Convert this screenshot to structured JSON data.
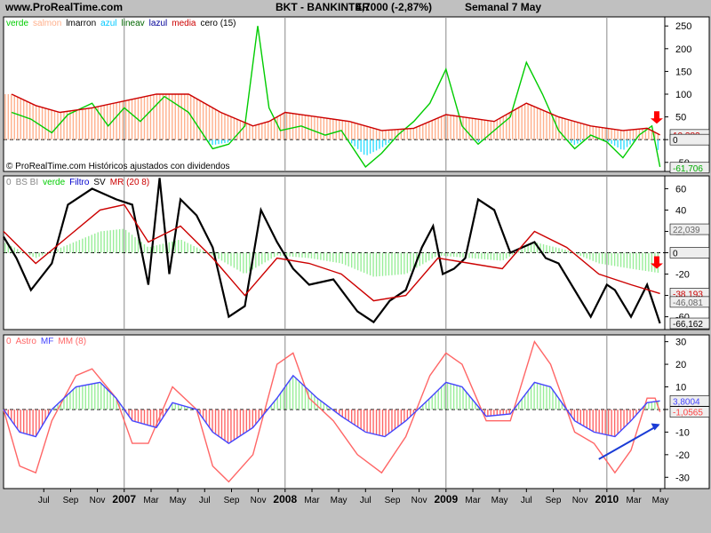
{
  "header": {
    "site": "www.ProRealTime.com",
    "symbol": "BKT - BANKINTER",
    "price": "4,7000 (-2,87%)",
    "period": "Semanal  7 May"
  },
  "chart_data": [
    {
      "type": "line",
      "legend": [
        {
          "text": "verde",
          "color": "#00cc00"
        },
        {
          "text": "salmon",
          "color": "#ffb08c"
        },
        {
          "text": "lmarron",
          "color": "#000000"
        },
        {
          "text": "azul",
          "color": "#00c8ff"
        },
        {
          "text": "lineav",
          "color": "#006600"
        },
        {
          "text": "lazul",
          "color": "#000099"
        },
        {
          "text": "media",
          "color": "#cc0000"
        },
        {
          "text": "cero (15)",
          "color": "#000000"
        }
      ],
      "footnote": "© ProRealTime.com Históricos ajustados con dividendos",
      "ylim": [
        -70,
        270
      ],
      "yticks": [
        -50,
        0,
        50,
        100,
        150,
        200,
        250
      ],
      "value_labels": [
        {
          "text": "10,382",
          "y": 10.4,
          "color": "#cc0000"
        },
        {
          "text": "0",
          "y": 0,
          "color": "#000000"
        },
        {
          "text": "-61,706",
          "y": -61.7,
          "color": "#00aa00"
        }
      ],
      "series": [
        {
          "name": "verde",
          "color": "#00cc00",
          "x": [
            2006.3,
            2006.42,
            2006.55,
            2006.65,
            2006.8,
            2006.9,
            2007.0,
            2007.1,
            2007.25,
            2007.4,
            2007.55,
            2007.65,
            2007.75,
            2007.83,
            2007.9,
            2007.97,
            2008.1,
            2008.25,
            2008.35,
            2008.5,
            2008.6,
            2008.7,
            2008.8,
            2008.9,
            2009.0,
            2009.1,
            2009.2,
            2009.3,
            2009.4,
            2009.5,
            2009.6,
            2009.7,
            2009.8,
            2009.9,
            2010.0,
            2010.1,
            2010.2,
            2010.28,
            2010.33
          ],
          "values": [
            60,
            45,
            15,
            55,
            80,
            30,
            70,
            40,
            95,
            60,
            -20,
            -10,
            30,
            250,
            70,
            20,
            30,
            10,
            20,
            -60,
            -30,
            10,
            40,
            80,
            155,
            30,
            -10,
            20,
            50,
            170,
            100,
            20,
            -20,
            10,
            -5,
            -40,
            10,
            30,
            -60
          ]
        },
        {
          "name": "media",
          "color": "#cc0000",
          "x": [
            2006.3,
            2006.45,
            2006.6,
            2006.8,
            2007.0,
            2007.2,
            2007.4,
            2007.6,
            2007.8,
            2007.9,
            2008.0,
            2008.2,
            2008.4,
            2008.6,
            2008.8,
            2009.0,
            2009.1,
            2009.3,
            2009.5,
            2009.7,
            2009.9,
            2010.1,
            2010.25,
            2010.33
          ],
          "values": [
            100,
            75,
            60,
            70,
            85,
            100,
            100,
            60,
            30,
            40,
            60,
            50,
            40,
            20,
            25,
            55,
            50,
            40,
            80,
            50,
            30,
            20,
            25,
            10.4
          ]
        }
      ]
    },
    {
      "type": "line",
      "legend": [
        {
          "text": "0",
          "color": "#888888"
        },
        {
          "text": "BS BI",
          "color": "#888888"
        },
        {
          "text": "verde",
          "color": "#00cc00"
        },
        {
          "text": "Filtro",
          "color": "#0000cc"
        },
        {
          "text": "SV",
          "color": "#000000"
        },
        {
          "text": "MR (20 8)",
          "color": "#cc0000"
        }
      ],
      "ylim": [
        -72,
        72
      ],
      "yticks": [
        -60,
        -40,
        -20,
        0,
        20,
        40,
        60
      ],
      "value_labels": [
        {
          "text": "22,039",
          "y": 22.0,
          "color": "#666666"
        },
        {
          "text": "0",
          "y": 0,
          "color": "#000000"
        },
        {
          "text": "-38,193",
          "y": -38.2,
          "color": "#cc0000"
        },
        {
          "text": "-46,081",
          "y": -46.1,
          "color": "#666666"
        },
        {
          "text": "-66,162",
          "y": -66.2,
          "color": "#000000"
        }
      ],
      "series": [
        {
          "name": "SV",
          "color": "#000000",
          "x": [
            2006.25,
            2006.33,
            2006.42,
            2006.55,
            2006.65,
            2006.8,
            2006.95,
            2007.05,
            2007.15,
            2007.22,
            2007.28,
            2007.35,
            2007.45,
            2007.55,
            2007.65,
            2007.75,
            2007.85,
            2007.95,
            2008.05,
            2008.15,
            2008.3,
            2008.45,
            2008.55,
            2008.65,
            2008.75,
            2008.85,
            2008.92,
            2008.98,
            2009.05,
            2009.12,
            2009.2,
            2009.3,
            2009.4,
            2009.55,
            2009.62,
            2009.7,
            2009.8,
            2009.9,
            2010.0,
            2010.05,
            2010.15,
            2010.25,
            2010.33
          ],
          "values": [
            15,
            -5,
            -35,
            -10,
            45,
            60,
            50,
            45,
            -30,
            70,
            -20,
            50,
            35,
            5,
            -60,
            -50,
            40,
            10,
            -15,
            -30,
            -25,
            -55,
            -65,
            -45,
            -35,
            5,
            25,
            -20,
            -15,
            -5,
            50,
            40,
            0,
            10,
            -5,
            -10,
            -35,
            -60,
            -30,
            -35,
            -60,
            -30,
            -66.2
          ]
        },
        {
          "name": "MR (20 8)",
          "color": "#cc0000",
          "x": [
            2006.25,
            2006.45,
            2006.65,
            2006.85,
            2007.0,
            2007.15,
            2007.35,
            2007.55,
            2007.75,
            2007.95,
            2008.15,
            2008.35,
            2008.55,
            2008.75,
            2008.95,
            2009.15,
            2009.35,
            2009.55,
            2009.75,
            2009.95,
            2010.15,
            2010.33
          ],
          "values": [
            20,
            -10,
            15,
            40,
            45,
            10,
            25,
            -5,
            -40,
            -5,
            -10,
            -20,
            -45,
            -40,
            -5,
            -10,
            -15,
            20,
            5,
            -20,
            -30,
            -38.2
          ]
        }
      ]
    },
    {
      "type": "line",
      "legend": [
        {
          "text": "0",
          "color": "#ff6666"
        },
        {
          "text": "Astro",
          "color": "#ff6666"
        },
        {
          "text": "MF",
          "color": "#4444ff"
        },
        {
          "text": "MM (8)",
          "color": "#ff6666"
        }
      ],
      "ylim": [
        -35,
        33
      ],
      "yticks": [
        -30,
        -20,
        -10,
        0,
        10,
        20,
        30
      ],
      "value_labels": [
        {
          "text": "3,8004",
          "y": 3.8,
          "color": "#4444ff"
        },
        {
          "text": "-1,0565",
          "y": -1.06,
          "color": "#ff4444"
        }
      ],
      "series": [
        {
          "name": "Astro",
          "color": "#ff6666",
          "x": [
            2006.25,
            2006.35,
            2006.45,
            2006.55,
            2006.7,
            2006.8,
            2006.95,
            2007.05,
            2007.15,
            2007.3,
            2007.45,
            2007.55,
            2007.65,
            2007.8,
            2007.95,
            2008.05,
            2008.15,
            2008.3,
            2008.45,
            2008.6,
            2008.75,
            2008.9,
            2009.0,
            2009.1,
            2009.25,
            2009.4,
            2009.55,
            2009.65,
            2009.8,
            2009.92,
            2010.05,
            2010.15,
            2010.25,
            2010.3,
            2010.33
          ],
          "values": [
            0,
            -25,
            -28,
            -5,
            15,
            18,
            5,
            -15,
            -15,
            10,
            0,
            -25,
            -32,
            -20,
            20,
            25,
            5,
            -5,
            -20,
            -28,
            -12,
            15,
            25,
            20,
            -5,
            -5,
            30,
            20,
            -10,
            -15,
            -28,
            -18,
            5,
            5,
            -1.06
          ]
        },
        {
          "name": "MF",
          "color": "#4444ff",
          "x": [
            2006.25,
            2006.35,
            2006.45,
            2006.55,
            2006.7,
            2006.85,
            2006.95,
            2007.05,
            2007.2,
            2007.3,
            2007.45,
            2007.55,
            2007.65,
            2007.8,
            2007.95,
            2008.05,
            2008.2,
            2008.35,
            2008.5,
            2008.62,
            2008.75,
            2008.9,
            2009.0,
            2009.1,
            2009.25,
            2009.4,
            2009.55,
            2009.65,
            2009.8,
            2009.92,
            2010.05,
            2010.15,
            2010.25,
            2010.33
          ],
          "values": [
            0,
            -10,
            -12,
            0,
            10,
            12,
            5,
            -5,
            -8,
            3,
            0,
            -10,
            -15,
            -8,
            5,
            15,
            5,
            -3,
            -10,
            -12,
            -5,
            5,
            12,
            10,
            -3,
            -2,
            12,
            10,
            -5,
            -10,
            -12,
            -5,
            3,
            3.8
          ]
        }
      ]
    }
  ],
  "x_axis": {
    "ticks": [
      {
        "label": "Jul",
        "x": 2006.5
      },
      {
        "label": "Sep",
        "x": 2006.667
      },
      {
        "label": "Nov",
        "x": 2006.833
      },
      {
        "label": "2007",
        "x": 2007.0
      },
      {
        "label": "Mar",
        "x": 2007.167
      },
      {
        "label": "May",
        "x": 2007.333
      },
      {
        "label": "Jul",
        "x": 2007.5
      },
      {
        "label": "Sep",
        "x": 2007.667
      },
      {
        "label": "Nov",
        "x": 2007.833
      },
      {
        "label": "2008",
        "x": 2008.0
      },
      {
        "label": "Mar",
        "x": 2008.167
      },
      {
        "label": "May",
        "x": 2008.333
      },
      {
        "label": "Jul",
        "x": 2008.5
      },
      {
        "label": "Sep",
        "x": 2008.667
      },
      {
        "label": "Nov",
        "x": 2008.833
      },
      {
        "label": "2009",
        "x": 2009.0
      },
      {
        "label": "Mar",
        "x": 2009.167
      },
      {
        "label": "May",
        "x": 2009.333
      },
      {
        "label": "Jul",
        "x": 2009.5
      },
      {
        "label": "Sep",
        "x": 2009.667
      },
      {
        "label": "Nov",
        "x": 2009.833
      },
      {
        "label": "2010",
        "x": 2010.0
      },
      {
        "label": "Mar",
        "x": 2010.167
      },
      {
        "label": "May",
        "x": 2010.333
      }
    ]
  }
}
